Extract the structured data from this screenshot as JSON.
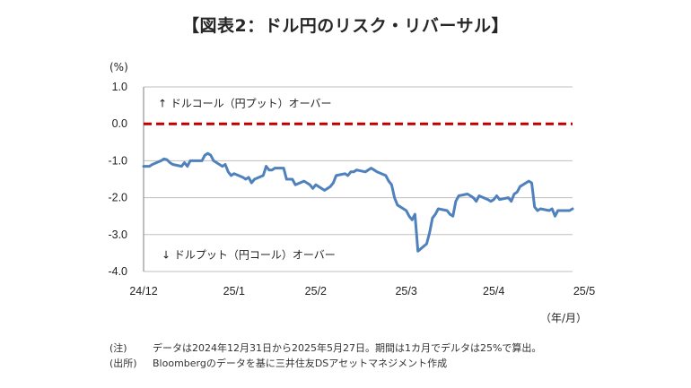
{
  "title": "【図表2：ドル円のリスク・リバーサル】",
  "y_unit": "(%)",
  "x_unit": "（年/月）",
  "notes": [
    {
      "label": "(注)",
      "text": "データは2024年12月31日から2025年5月27日。期間は1カ月でデルタは25%で算出。"
    },
    {
      "label": "(出所)",
      "text": "Bloombergのデータを基に三井住友DSアセットマネジメント作成"
    }
  ],
  "colors": {
    "series": "#4f81bd",
    "zero_line": "#c00000",
    "grid": "#bfbfbf",
    "axis": "#7f7f7f"
  },
  "chart_data": {
    "type": "line",
    "title": "【図表2：ドル円のリスク・リバーサル】",
    "ylabel": "(%)",
    "xlabel": "（年/月）",
    "ylim": [
      -4.0,
      1.0
    ],
    "yticks": [
      "1.0",
      "0.0",
      "-1.0",
      "-2.0",
      "-3.0",
      "-4.0"
    ],
    "ytick_values": [
      1.0,
      0.0,
      -1.0,
      -2.0,
      -3.0,
      -4.0
    ],
    "xlim": [
      "2024-12-31",
      "2025-05-27"
    ],
    "xticks": [
      "24/12",
      "25/1",
      "25/2",
      "25/3",
      "25/4",
      "25/5"
    ],
    "xtick_dates": [
      "2024-12-31",
      "2025-01-31",
      "2025-02-28",
      "2025-03-31",
      "2025-04-30",
      "2025-05-31"
    ],
    "grid": true,
    "annotations": [
      {
        "text": "↑ ドルコール（円プット）オーバー",
        "at": "upper-left"
      },
      {
        "text": "↓ ドルプット（円コール）オーバー",
        "at": "lower-left"
      }
    ],
    "reference_line": {
      "y": 0.0,
      "style": "dashed"
    },
    "series": [
      {
        "x": [
          "2024-12-31",
          "2025-01-02",
          "2025-01-03",
          "2025-01-06",
          "2025-01-07",
          "2025-01-08",
          "2025-01-09",
          "2025-01-10",
          "2025-01-13",
          "2025-01-14",
          "2025-01-15",
          "2025-01-16",
          "2025-01-17",
          "2025-01-20",
          "2025-01-21",
          "2025-01-22",
          "2025-01-23",
          "2025-01-24",
          "2025-01-27",
          "2025-01-28",
          "2025-01-29",
          "2025-01-30",
          "2025-01-31",
          "2025-02-03",
          "2025-02-04",
          "2025-02-05",
          "2025-02-06",
          "2025-02-07",
          "2025-02-10",
          "2025-02-11",
          "2025-02-12",
          "2025-02-13",
          "2025-02-14",
          "2025-02-17",
          "2025-02-18",
          "2025-02-19",
          "2025-02-20",
          "2025-02-21",
          "2025-02-24",
          "2025-02-25",
          "2025-02-26",
          "2025-02-27",
          "2025-02-28",
          "2025-03-03",
          "2025-03-04",
          "2025-03-05",
          "2025-03-06",
          "2025-03-07",
          "2025-03-10",
          "2025-03-11",
          "2025-03-12",
          "2025-03-13",
          "2025-03-14",
          "2025-03-17",
          "2025-03-18",
          "2025-03-19",
          "2025-03-20",
          "2025-03-21",
          "2025-03-24",
          "2025-03-25",
          "2025-03-26",
          "2025-03-27",
          "2025-03-28",
          "2025-03-31",
          "2025-04-01",
          "2025-04-02",
          "2025-04-03",
          "2025-04-04",
          "2025-04-07",
          "2025-04-08",
          "2025-04-09",
          "2025-04-10",
          "2025-04-11",
          "2025-04-14",
          "2025-04-15",
          "2025-04-16",
          "2025-04-17",
          "2025-04-18",
          "2025-04-21",
          "2025-04-22",
          "2025-04-23",
          "2025-04-24",
          "2025-04-25",
          "2025-04-28",
          "2025-04-29",
          "2025-04-30",
          "2025-05-01",
          "2025-05-02",
          "2025-05-05",
          "2025-05-06",
          "2025-05-07",
          "2025-05-08",
          "2025-05-09",
          "2025-05-12",
          "2025-05-13",
          "2025-05-14",
          "2025-05-15",
          "2025-05-16",
          "2025-05-19",
          "2025-05-20",
          "2025-05-21",
          "2025-05-22",
          "2025-05-23",
          "2025-05-26",
          "2025-05-27"
        ],
        "values": [
          -1.15,
          -1.15,
          -1.1,
          -1.0,
          -0.95,
          -0.97,
          -1.05,
          -1.1,
          -1.15,
          -1.05,
          -1.15,
          -1.0,
          -1.0,
          -1.0,
          -0.85,
          -0.8,
          -0.85,
          -1.0,
          -1.15,
          -1.1,
          -1.3,
          -1.4,
          -1.35,
          -1.45,
          -1.5,
          -1.45,
          -1.6,
          -1.5,
          -1.4,
          -1.15,
          -1.25,
          -1.25,
          -1.2,
          -1.2,
          -1.5,
          -1.5,
          -1.5,
          -1.65,
          -1.55,
          -1.6,
          -1.65,
          -1.75,
          -1.65,
          -1.8,
          -1.75,
          -1.7,
          -1.6,
          -1.4,
          -1.35,
          -1.4,
          -1.3,
          -1.3,
          -1.25,
          -1.3,
          -1.25,
          -1.2,
          -1.25,
          -1.3,
          -1.4,
          -1.55,
          -1.65,
          -2.0,
          -2.2,
          -2.35,
          -2.5,
          -2.6,
          -2.45,
          -3.45,
          -3.25,
          -2.95,
          -2.55,
          -2.45,
          -2.3,
          -2.35,
          -2.45,
          -2.5,
          -2.1,
          -1.95,
          -1.9,
          -1.95,
          -2.0,
          -2.1,
          -1.95,
          -2.05,
          -2.1,
          -2.05,
          -1.95,
          -2.05,
          -2.0,
          -2.1,
          -1.9,
          -1.85,
          -1.7,
          -1.55,
          -1.6,
          -2.25,
          -2.35,
          -2.3,
          -2.35,
          -2.3,
          -2.5,
          -2.35,
          -2.35,
          -2.35,
          -2.3
        ]
      }
    ]
  }
}
